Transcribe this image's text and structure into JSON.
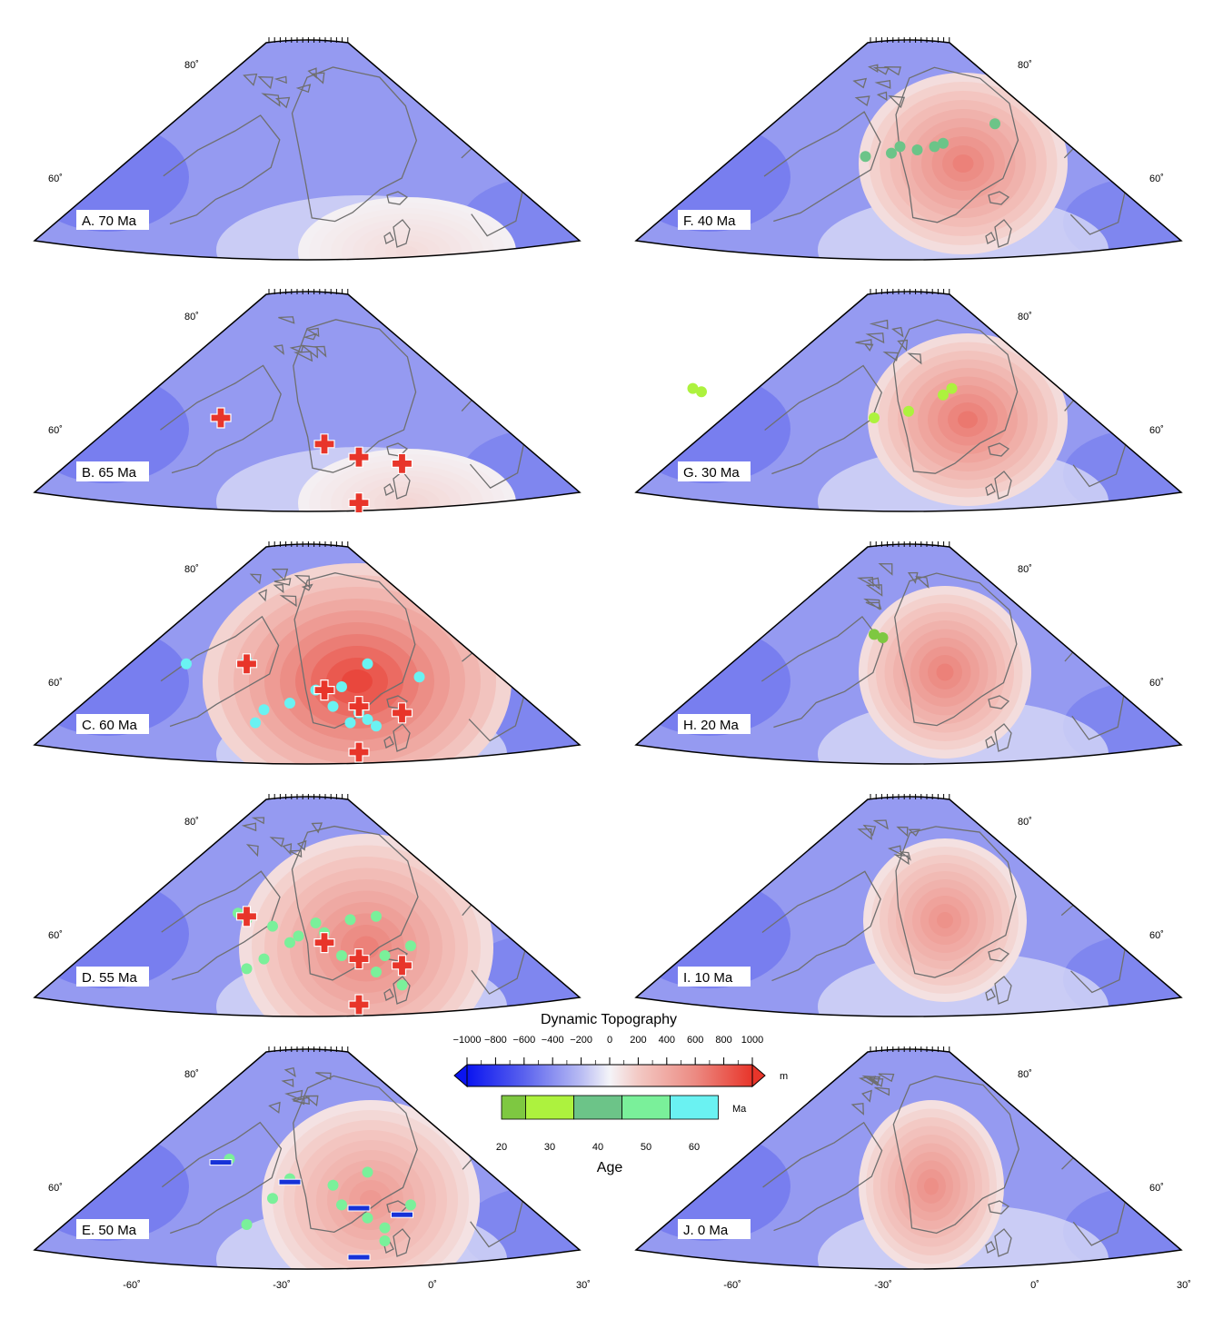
{
  "figure": {
    "panels": [
      {
        "id": "A",
        "label": "A. 70 Ma",
        "age_ma": 70,
        "anomaly_amplitude": 0.12,
        "markers": []
      },
      {
        "id": "B",
        "label": "B. 65 Ma",
        "age_ma": 65,
        "anomaly_amplitude": 0.15,
        "markers": [
          {
            "type": "plus",
            "lon": -28,
            "lat": 66.5
          },
          {
            "type": "plus",
            "lon": -16,
            "lat": 62.5
          },
          {
            "type": "plus",
            "lon": -12,
            "lat": 60.5
          },
          {
            "type": "plus",
            "lon": -7,
            "lat": 59.5
          },
          {
            "type": "plus",
            "lon": -12,
            "lat": 53.5
          }
        ]
      },
      {
        "id": "C",
        "label": "C. 60 Ma",
        "age_ma": 60,
        "anomaly_amplitude": 1.0,
        "markers": [
          {
            "type": "dot",
            "age": 60,
            "lon": -32,
            "lat": 67.5
          },
          {
            "type": "dot",
            "age": 60,
            "lon": -25,
            "lat": 68
          },
          {
            "type": "dot",
            "age": 60,
            "lon": -11,
            "lat": 67.5
          },
          {
            "type": "dot",
            "age": 60,
            "lon": -5,
            "lat": 65.5
          },
          {
            "type": "dot",
            "age": 60,
            "lon": -17,
            "lat": 63.5
          },
          {
            "type": "dot",
            "age": 60,
            "lon": -14,
            "lat": 64
          },
          {
            "type": "dot",
            "age": 60,
            "lon": -20,
            "lat": 61.5
          },
          {
            "type": "dot",
            "age": 60,
            "lon": -23,
            "lat": 60.5
          },
          {
            "type": "dot",
            "age": 60,
            "lon": -15,
            "lat": 61
          },
          {
            "type": "dot",
            "age": 60,
            "lon": -12,
            "lat": 60
          },
          {
            "type": "dot",
            "age": 60,
            "lon": -11,
            "lat": 59
          },
          {
            "type": "dot",
            "age": 60,
            "lon": -10,
            "lat": 58
          },
          {
            "type": "dot",
            "age": 60,
            "lon": -24,
            "lat": 58.5
          },
          {
            "type": "dot",
            "age": 60,
            "lon": -13,
            "lat": 58.5
          },
          {
            "type": "plus",
            "lon": -25,
            "lat": 67.5
          },
          {
            "type": "plus",
            "lon": -16,
            "lat": 63.5
          },
          {
            "type": "plus",
            "lon": -12,
            "lat": 61
          },
          {
            "type": "plus",
            "lon": -7,
            "lat": 60
          },
          {
            "type": "plus",
            "lon": -12,
            "lat": 54
          }
        ]
      },
      {
        "id": "D",
        "label": "D. 55 Ma",
        "age_ma": 55,
        "anomaly_amplitude": 0.7,
        "markers": [
          {
            "type": "dot",
            "age": 50,
            "lon": -26,
            "lat": 68
          },
          {
            "type": "dot",
            "age": 50,
            "lon": -25,
            "lat": 67
          },
          {
            "type": "dot",
            "age": 50,
            "lon": -22,
            "lat": 66
          },
          {
            "type": "dot",
            "age": 50,
            "lon": -17,
            "lat": 66.5
          },
          {
            "type": "dot",
            "age": 50,
            "lon": -13,
            "lat": 67
          },
          {
            "type": "dot",
            "age": 50,
            "lon": -10,
            "lat": 67.5
          },
          {
            "type": "dot",
            "age": 50,
            "lon": -19,
            "lat": 64.5
          },
          {
            "type": "dot",
            "age": 50,
            "lon": -16,
            "lat": 65
          },
          {
            "type": "dot",
            "age": 50,
            "lon": -20,
            "lat": 63.5
          },
          {
            "type": "dot",
            "age": 50,
            "lon": -23,
            "lat": 61
          },
          {
            "type": "dot",
            "age": 50,
            "lon": -14,
            "lat": 61.5
          },
          {
            "type": "dot",
            "age": 50,
            "lon": -9,
            "lat": 61.5
          },
          {
            "type": "dot",
            "age": 50,
            "lon": -6,
            "lat": 63
          },
          {
            "type": "dot",
            "age": 50,
            "lon": -10,
            "lat": 59
          },
          {
            "type": "dot",
            "age": 50,
            "lon": -25,
            "lat": 59.5
          },
          {
            "type": "dot",
            "age": 50,
            "lon": -7,
            "lat": 57
          },
          {
            "type": "plus",
            "lon": -25,
            "lat": 67.5
          },
          {
            "type": "plus",
            "lon": -16,
            "lat": 63.5
          },
          {
            "type": "plus",
            "lon": -12,
            "lat": 61
          },
          {
            "type": "plus",
            "lon": -7,
            "lat": 60
          },
          {
            "type": "plus",
            "lon": -12,
            "lat": 54
          }
        ]
      },
      {
        "id": "E",
        "label": "E. 50 Ma",
        "age_ma": 50,
        "anomaly_amplitude": 0.55,
        "markers": [
          {
            "type": "dot",
            "age": 50,
            "lon": -27,
            "lat": 69
          },
          {
            "type": "dot",
            "age": 50,
            "lon": -20,
            "lat": 66
          },
          {
            "type": "dot",
            "age": 50,
            "lon": -15,
            "lat": 65
          },
          {
            "type": "dot",
            "age": 50,
            "lon": -11,
            "lat": 67
          },
          {
            "type": "dot",
            "age": 50,
            "lon": -22,
            "lat": 63
          },
          {
            "type": "dot",
            "age": 50,
            "lon": -14,
            "lat": 62
          },
          {
            "type": "dot",
            "age": 50,
            "lon": -11,
            "lat": 60
          },
          {
            "type": "dot",
            "age": 50,
            "lon": -9,
            "lat": 58.5
          },
          {
            "type": "dot",
            "age": 50,
            "lon": -6,
            "lat": 62
          },
          {
            "type": "dot",
            "age": 50,
            "lon": -25,
            "lat": 59
          },
          {
            "type": "dot",
            "age": 50,
            "lon": -9,
            "lat": 56.5
          },
          {
            "type": "bar",
            "lon": -28,
            "lat": 68.5
          },
          {
            "type": "bar",
            "lon": -20,
            "lat": 65.5
          },
          {
            "type": "bar",
            "lon": -12,
            "lat": 61.5
          },
          {
            "type": "bar",
            "lon": -7,
            "lat": 60.5
          },
          {
            "type": "bar",
            "lon": -12,
            "lat": 54
          }
        ]
      },
      {
        "id": "F",
        "label": "F. 40 Ma",
        "age_ma": 40,
        "anomaly_amplitude": 0.7,
        "markers": [
          {
            "type": "dot",
            "age": 40,
            "lon": -8,
            "lat": 73
          },
          {
            "type": "dot",
            "age": 40,
            "lon": -14,
            "lat": 70
          },
          {
            "type": "dot",
            "age": 40,
            "lon": -17,
            "lat": 69
          },
          {
            "type": "dot",
            "age": 40,
            "lon": -20,
            "lat": 68.5
          },
          {
            "type": "dot",
            "age": 40,
            "lon": -23,
            "lat": 68
          },
          {
            "type": "dot",
            "age": 40,
            "lon": -15,
            "lat": 69.5
          },
          {
            "type": "dot",
            "age": 40,
            "lon": -19,
            "lat": 69.5
          }
        ]
      },
      {
        "id": "G",
        "label": "G. 30 Ma",
        "age_ma": 30,
        "anomaly_amplitude": 0.75,
        "markers": [
          {
            "type": "dot",
            "age": 30,
            "lon": -43,
            "lat": 71
          },
          {
            "type": "dot",
            "age": 30,
            "lon": -42,
            "lat": 70.5
          },
          {
            "type": "dot",
            "age": 30,
            "lon": -13,
            "lat": 71
          },
          {
            "type": "dot",
            "age": 30,
            "lon": -14,
            "lat": 70
          },
          {
            "type": "dot",
            "age": 30,
            "lon": -18,
            "lat": 67.5
          },
          {
            "type": "dot",
            "age": 30,
            "lon": -22,
            "lat": 66.5
          }
        ]
      },
      {
        "id": "H",
        "label": "H. 20 Ma",
        "age_ma": 20,
        "anomaly_amplitude": 0.7,
        "markers": [
          {
            "type": "dot",
            "age": 20,
            "lon": -22,
            "lat": 72
          },
          {
            "type": "dot",
            "age": 20,
            "lon": -21,
            "lat": 71.5
          }
        ]
      },
      {
        "id": "I",
        "label": "I. 10 Ma",
        "age_ma": 10,
        "anomaly_amplitude": 0.6,
        "markers": []
      },
      {
        "id": "J",
        "label": "J. 0 Ma",
        "age_ma": 0,
        "anomaly_amplitude": 0.62,
        "markers": []
      }
    ],
    "lat_labels": [
      "80˚",
      "60˚"
    ],
    "lon_labels": [
      "-60˚",
      "-30˚",
      "0˚",
      "30˚"
    ]
  },
  "colorbar": {
    "title": "Dynamic Topography",
    "ticks": [
      "-1000",
      "-800",
      "-600",
      "-400",
      "-200",
      "0",
      "200",
      "400",
      "600",
      "800",
      "1000"
    ],
    "range": [
      -1000,
      1000
    ],
    "unit": "m",
    "colors": {
      "min": "#0a14f0",
      "mid": "#f4f4f8",
      "max": "#e8352a"
    }
  },
  "age_scale": {
    "title": "Age",
    "unit": "Ma",
    "ticks": [
      "20",
      "30",
      "40",
      "50",
      "60"
    ],
    "bins": [
      {
        "from": 20,
        "to": 25,
        "color": "#7ec841"
      },
      {
        "from": 25,
        "to": 35,
        "color": "#adf23e"
      },
      {
        "from": 35,
        "to": 45,
        "color": "#6cc488"
      },
      {
        "from": 45,
        "to": 55,
        "color": "#7af09a"
      },
      {
        "from": 55,
        "to": 65,
        "color": "#6af2f2"
      }
    ]
  },
  "marker_colors": {
    "plus": "#e8352a",
    "bar": "#1632d8"
  }
}
